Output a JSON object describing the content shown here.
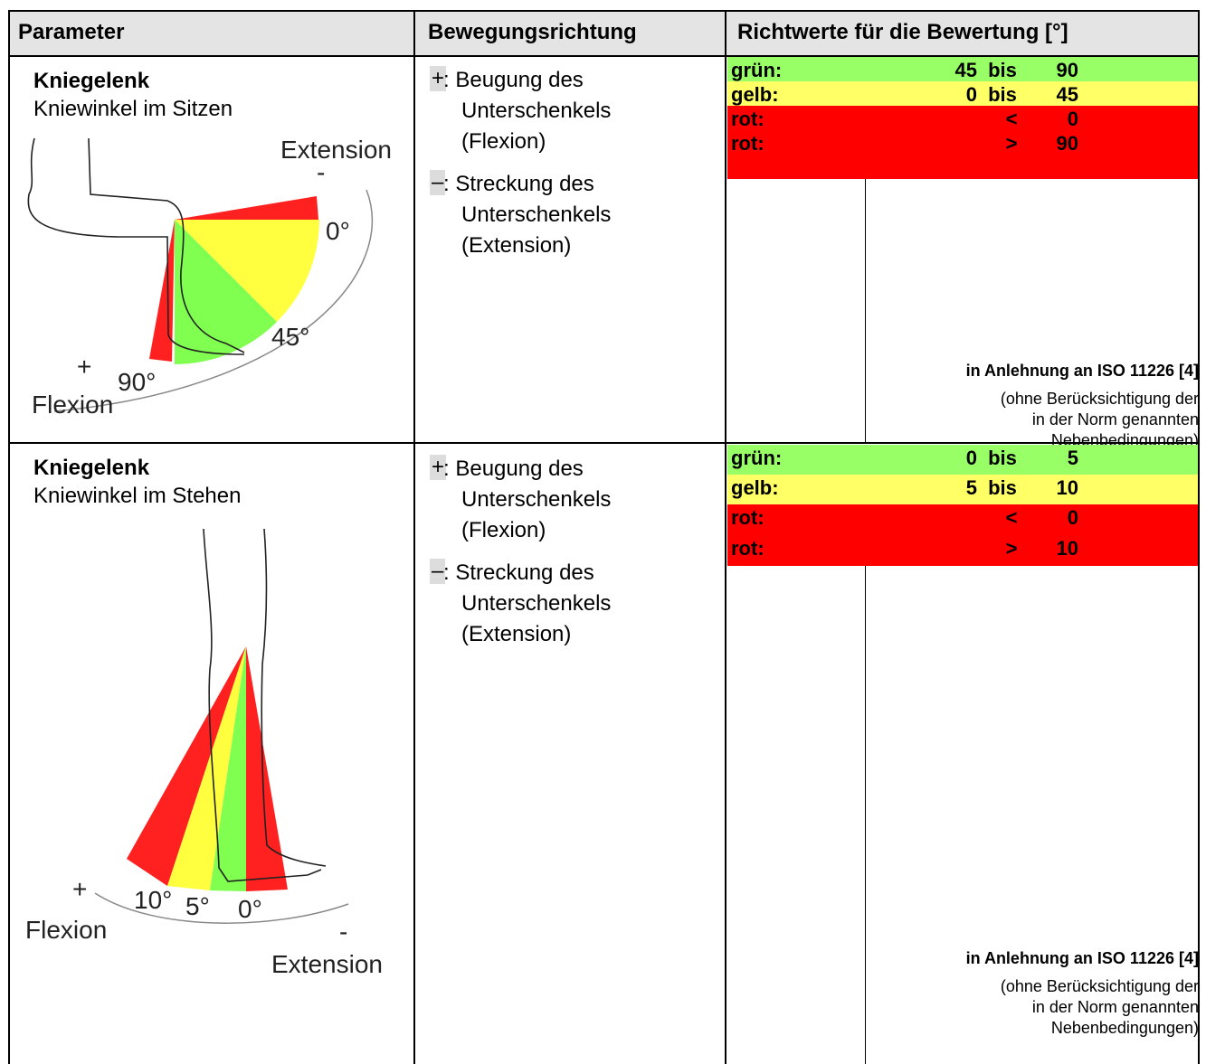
{
  "table": {
    "header": [
      "Parameter",
      "Bewegungsrichtung",
      "Richtwerte für die Bewertung [°]"
    ],
    "rows": [
      {
        "parameter": {
          "title": "Kniegelenk",
          "subtitle": "Kniewinkel im Sitzen"
        },
        "figure_labels": [
          "Extension",
          "-",
          "0°",
          "45°",
          "+",
          "90°",
          "Flexion"
        ],
        "direction": [
          {
            "sign": "+",
            "lines": [
              ": Beugung des",
              "Unterschenkels",
              "(Flexion)"
            ]
          },
          {
            "sign": "–",
            "lines": [
              ": Streckung des",
              "Unterschenkels",
              "(Extension)"
            ]
          }
        ],
        "ratings": [
          {
            "label": "grün:",
            "parts": [
              "45",
              "bis",
              "90"
            ]
          },
          {
            "label": "gelb:",
            "parts": [
              "0",
              "bis",
              "45"
            ]
          },
          {
            "label": "rot:",
            "parts": [
              "<",
              "0"
            ]
          },
          {
            "label": "rot:",
            "parts": [
              ">",
              "90"
            ]
          }
        ],
        "note": "in Anlehnung an ISO 11226 [4]",
        "note_detail": [
          "(ohne Berücksichtigung der",
          "in der Norm genannten",
          "Nebenbedingungen)"
        ]
      },
      {
        "parameter": {
          "title": "Kniegelenk",
          "subtitle": "Kniewinkel im Stehen"
        },
        "figure_labels": [
          "+",
          "10°",
          "5°",
          "0°",
          "Flexion",
          "-",
          "Extension"
        ],
        "direction": [
          {
            "sign": "+",
            "lines": [
              ": Beugung des",
              "Unterschenkels",
              "(Flexion)"
            ]
          },
          {
            "sign": "–",
            "lines": [
              ": Streckung des",
              "Unterschenkels",
              "(Extension)"
            ]
          }
        ],
        "ratings": [
          {
            "label": "grün:",
            "parts": [
              "0",
              "bis",
              "5"
            ]
          },
          {
            "label": "gelb:",
            "parts": [
              "5",
              "bis",
              "10"
            ]
          },
          {
            "label": "rot:",
            "parts": [
              "<",
              "0"
            ]
          },
          {
            "label": "rot:",
            "parts": [
              ">",
              "10"
            ]
          }
        ],
        "note": "in Anlehnung an ISO 11226 [4]",
        "note_detail": [
          "(ohne Berücksichtigung der",
          "in der Norm genannten",
          "Nebenbedingungen)"
        ]
      }
    ]
  }
}
